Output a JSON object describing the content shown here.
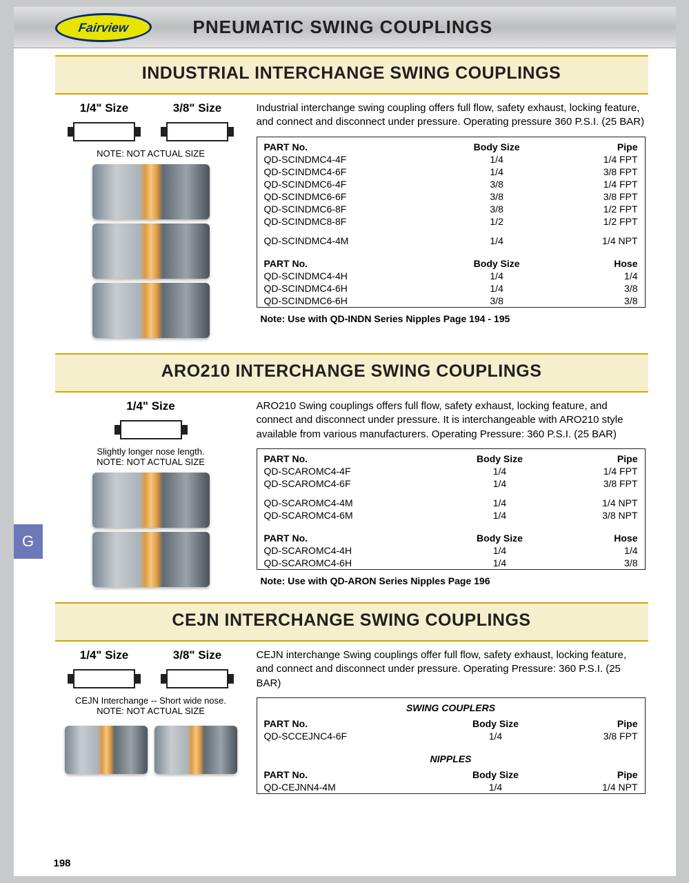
{
  "document": {
    "brand": "Fairview",
    "title": "PNEUMATIC SWING COUPLINGS",
    "page_number": "198",
    "side_tab": "G",
    "colors": {
      "header_bg": "#f5efce",
      "header_border": "#d4a500",
      "tab_bg": "#6d78b8",
      "topbar_gradient": [
        "#e0e0e2",
        "#bdbec0",
        "#e0e0e2"
      ],
      "logo_fill": "#e8e300",
      "logo_border": "#002d72"
    }
  },
  "sections": [
    {
      "title": "INDUSTRIAL INTERCHANGE SWING COUPLINGS",
      "sizes": [
        "1/4\" Size",
        "3/8\" Size"
      ],
      "note": "NOTE: NOT ACTUAL SIZE",
      "description": "Industrial interchange swing coupling offers full flow, safety exhaust, locking feature, and connect and disconnect under pressure. Operating pressure 360 P.S.I. (25 BAR)",
      "image_count": 3,
      "table_groups": [
        {
          "headers": [
            "PART No.",
            "Body Size",
            "Pipe"
          ],
          "rows": [
            [
              "QD-SCINDMC4-4F",
              "1/4",
              "1/4 FPT"
            ],
            [
              "QD-SCINDMC4-6F",
              "1/4",
              "3/8 FPT"
            ],
            [
              "QD-SCINDMC6-4F",
              "3/8",
              "1/4 FPT"
            ],
            [
              "QD-SCINDMC6-6F",
              "3/8",
              "3/8 FPT"
            ],
            [
              "QD-SCINDMC6-8F",
              "3/8",
              "1/2 FPT"
            ],
            [
              "QD-SCINDMC8-8F",
              "1/2",
              "1/2 FPT"
            ]
          ]
        },
        {
          "headers": null,
          "rows": [
            [
              "QD-SCINDMC4-4M",
              "1/4",
              "1/4 NPT"
            ]
          ]
        },
        {
          "headers": [
            "PART No.",
            "Body Size",
            "Hose"
          ],
          "rows": [
            [
              "QD-SCINDMC4-4H",
              "1/4",
              "1/4"
            ],
            [
              "QD-SCINDMC4-6H",
              "1/4",
              "3/8"
            ],
            [
              "QD-SCINDMC6-6H",
              "3/8",
              "3/8"
            ]
          ]
        }
      ],
      "foot_note": "Note:  Use with QD-INDN Series Nipples Page 194 - 195"
    },
    {
      "title": "ARO210 INTERCHANGE SWING COUPLINGS",
      "sizes": [
        "1/4\" Size"
      ],
      "note": "Slightly longer nose length.\nNOTE: NOT ACTUAL SIZE",
      "description": "ARO210 Swing couplings offers full flow, safety exhaust, locking feature, and connect and disconnect under pressure.  It is interchangeable with ARO210 style available from various manufacturers. Operating Pressure: 360 P.S.I. (25 BAR)",
      "image_count": 2,
      "table_groups": [
        {
          "headers": [
            "PART No.",
            "Body Size",
            "Pipe"
          ],
          "rows": [
            [
              "QD-SCAROMC4-4F",
              "1/4",
              "1/4 FPT"
            ],
            [
              "QD-SCAROMC4-6F",
              "1/4",
              "3/8 FPT"
            ]
          ]
        },
        {
          "headers": null,
          "rows": [
            [
              "QD-SCAROMC4-4M",
              "1/4",
              "1/4 NPT"
            ],
            [
              "QD-SCAROMC4-6M",
              "1/4",
              "3/8 NPT"
            ]
          ]
        },
        {
          "headers": [
            "PART No.",
            "Body Size",
            "Hose"
          ],
          "rows": [
            [
              "QD-SCAROMC4-4H",
              "1/4",
              "1/4"
            ],
            [
              "QD-SCAROMC4-6H",
              "1/4",
              "3/8"
            ]
          ]
        }
      ],
      "foot_note": "Note: Use with QD-ARON Series Nipples Page 196"
    },
    {
      "title": "CEJN INTERCHANGE SWING COUPLINGS",
      "sizes": [
        "1/4\" Size",
        "3/8\" Size"
      ],
      "note": "CEJN Interchange -- Short wide nose.\nNOTE: NOT ACTUAL SIZE",
      "description": "CEJN interchange Swing couplings offer full flow, safety exhaust, locking feature, and connect and disconnect under pressure. Operating Pressure: 360 P.S.I. (25 BAR)",
      "image_count": 1,
      "image_layout": "row",
      "table_groups": [
        {
          "subheader": "SWING COUPLERS",
          "headers": [
            "PART No.",
            "Body Size",
            "Pipe"
          ],
          "rows": [
            [
              "QD-SCCEJNC4-6F",
              "1/4",
              "3/8 FPT"
            ]
          ]
        },
        {
          "subheader": "NIPPLES",
          "headers": [
            "PART No.",
            "Body Size",
            "Pipe"
          ],
          "rows": [
            [
              "QD-CEJNN4-4M",
              "1/4",
              "1/4 NPT"
            ]
          ]
        }
      ],
      "foot_note": ""
    }
  ]
}
